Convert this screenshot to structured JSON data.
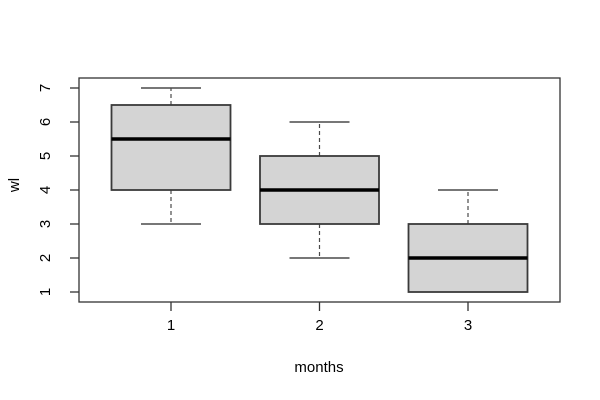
{
  "chart_data": {
    "type": "boxplot",
    "title": "",
    "xlabel": "months",
    "ylabel": "wl",
    "categories": [
      "1",
      "2",
      "3"
    ],
    "series": [
      {
        "category": "1",
        "min": 3,
        "q1": 4,
        "median": 5.5,
        "q3": 6.5,
        "max": 7
      },
      {
        "category": "2",
        "min": 2,
        "q1": 3,
        "median": 4,
        "q3": 5,
        "max": 6
      },
      {
        "category": "3",
        "min": 1,
        "q1": 1,
        "median": 2,
        "q3": 3,
        "max": 4
      }
    ],
    "yticks": [
      1,
      2,
      3,
      4,
      5,
      6,
      7
    ],
    "ylim": [
      1,
      7
    ],
    "grid": false,
    "legend": false,
    "colors": {
      "background": "#ffffff",
      "box_fill": "#d4d4d4",
      "box_border": "#3a3a3a",
      "median": "#000000",
      "whisker": "#4a4a4a",
      "axis": "#333333",
      "text": "#000000"
    }
  }
}
